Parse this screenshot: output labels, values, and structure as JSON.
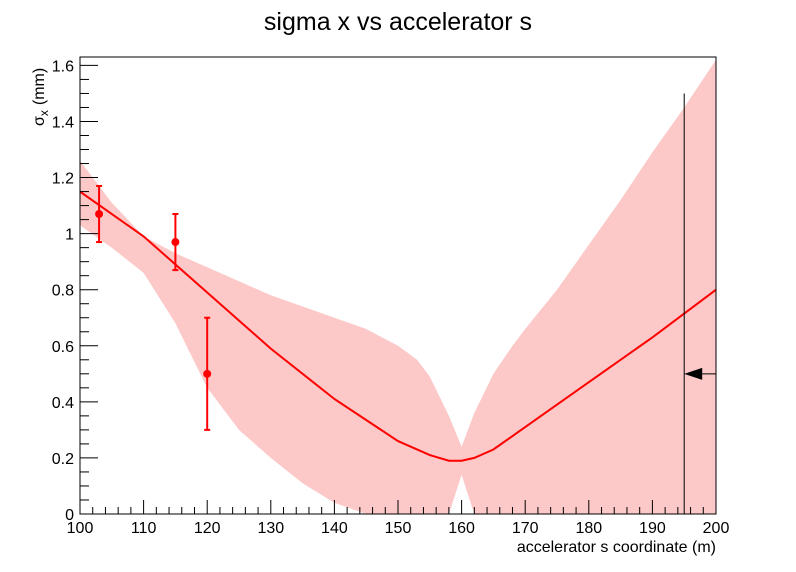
{
  "chart_data": {
    "type": "line",
    "title": "sigma x vs accelerator s",
    "xlabel": "accelerator s coordinate (m)",
    "ylabel": {
      "main": "σ",
      "sub": "x",
      "unit": "(mm)"
    },
    "xlim": [
      100,
      200
    ],
    "ylim": [
      0,
      1.63
    ],
    "xticks": [
      "100",
      "110",
      "120",
      "130",
      "140",
      "150",
      "160",
      "170",
      "180",
      "190",
      "200"
    ],
    "yticks": [
      "0",
      "0.2",
      "0.4",
      "0.6",
      "0.8",
      "1",
      "1.2",
      "1.4",
      "1.6"
    ],
    "grid": false,
    "colors": {
      "line": "#ff0000",
      "band": "#fcc8c8",
      "points": "#ff0000",
      "marker": "#000000"
    },
    "fit_curve": {
      "x": [
        100,
        110,
        120,
        130,
        140,
        150,
        155,
        158,
        160,
        162,
        165,
        170,
        180,
        190,
        200
      ],
      "y": [
        1.15,
        0.99,
        0.79,
        0.59,
        0.41,
        0.26,
        0.21,
        0.19,
        0.19,
        0.2,
        0.23,
        0.31,
        0.47,
        0.63,
        0.8
      ]
    },
    "confidence_band": {
      "x": [
        100,
        105,
        110,
        115,
        120,
        125,
        130,
        135,
        140,
        145,
        150,
        153,
        155,
        158,
        160,
        162,
        165,
        168,
        170,
        175,
        180,
        185,
        190,
        195,
        200
      ],
      "upper": [
        1.26,
        1.11,
        0.99,
        0.93,
        0.88,
        0.83,
        0.78,
        0.74,
        0.7,
        0.66,
        0.6,
        0.55,
        0.49,
        0.35,
        0.24,
        0.36,
        0.5,
        0.6,
        0.66,
        0.8,
        0.96,
        1.12,
        1.29,
        1.45,
        1.62
      ],
      "lower": [
        1.03,
        0.95,
        0.86,
        0.68,
        0.45,
        0.3,
        0.2,
        0.11,
        0.04,
        0.0,
        0.0,
        0.0,
        0.0,
        0.0,
        0.14,
        0.0,
        0.0,
        0.0,
        0.0,
        0.0,
        0.0,
        0.0,
        0.0,
        0.0,
        0.0
      ]
    },
    "points": [
      {
        "x": 103,
        "y": 1.07,
        "err": 0.1
      },
      {
        "x": 115,
        "y": 0.97,
        "err": 0.1
      },
      {
        "x": 120,
        "y": 0.5,
        "err": 0.2
      }
    ],
    "marker_line": {
      "x": 195,
      "ymax": 1.5
    },
    "marker_arrow": {
      "y": 0.5
    }
  }
}
